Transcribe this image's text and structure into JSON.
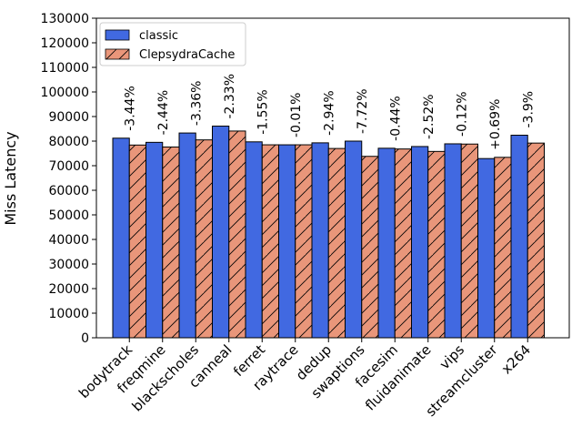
{
  "chart_data": {
    "type": "bar",
    "title": "",
    "xlabel": "",
    "ylabel": "Miss Latency",
    "ylim": [
      0,
      130000
    ],
    "yticks": [
      0,
      10000,
      20000,
      30000,
      40000,
      50000,
      60000,
      70000,
      80000,
      90000,
      100000,
      110000,
      120000,
      130000
    ],
    "grid": false,
    "legend_position": "top-left",
    "categories": [
      "bodytrack",
      "freqmine",
      "blackscholes",
      "canneal",
      "ferret",
      "raytrace",
      "dedup",
      "swaptions",
      "facesim",
      "fluidanimate",
      "vips",
      "streamcluster",
      "x264"
    ],
    "series": [
      {
        "name": "classic",
        "color": "#4169e1",
        "hatch": "none",
        "values": [
          81200,
          79500,
          83300,
          86100,
          79700,
          78500,
          79300,
          80000,
          77100,
          77800,
          78900,
          72900,
          82400
        ]
      },
      {
        "name": "ClepsydraCache",
        "color": "#e9967a",
        "hatch": "diagonal",
        "values": [
          78400,
          77600,
          80500,
          84100,
          78500,
          78500,
          77000,
          73800,
          76800,
          75800,
          78800,
          73400,
          79200
        ]
      }
    ],
    "annotations": [
      "-3.44%",
      "-2.44%",
      "-3.36%",
      "-2.33%",
      "-1.55%",
      "-0.01%",
      "-2.94%",
      "-7.72%",
      "-0.44%",
      "-2.52%",
      "-0.12%",
      "+0.69%",
      "-3.9%"
    ]
  }
}
